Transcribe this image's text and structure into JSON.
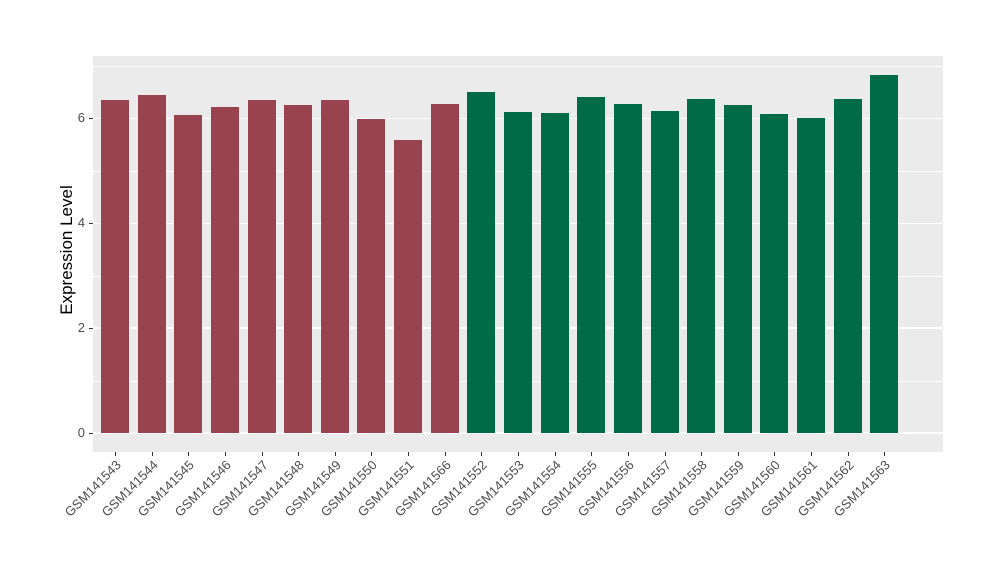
{
  "chart_data": {
    "type": "bar",
    "title": "",
    "xlabel": "",
    "ylabel": "Expression Level",
    "yticks": [
      0,
      2,
      4,
      6
    ],
    "yminor": [
      1,
      3,
      5,
      7
    ],
    "ylim_visible": [
      -0.36,
      7.19
    ],
    "grid": "on",
    "legend": "none",
    "panel_background": "#EBEBEB",
    "gridline_color": "#FFFFFF",
    "tick_color": "#333333",
    "axis_text_color": "#4D4D4D",
    "colors": {
      "red": "#9A4350",
      "green": "#006B47"
    },
    "categories": [
      "GSM141543",
      "GSM141544",
      "GSM141545",
      "GSM141546",
      "GSM141547",
      "GSM141548",
      "GSM141549",
      "GSM141550",
      "GSM141551",
      "GSM141566",
      "GSM141552",
      "GSM141553",
      "GSM141554",
      "GSM141555",
      "GSM141556",
      "GSM141557",
      "GSM141558",
      "GSM141559",
      "GSM141560",
      "GSM141561",
      "GSM141562",
      "GSM141563"
    ],
    "bars": [
      {
        "label": "GSM141543",
        "value": 6.35,
        "color": "red"
      },
      {
        "label": "GSM141544",
        "value": 6.44,
        "color": "red"
      },
      {
        "label": "GSM141545",
        "value": 6.06,
        "color": "red"
      },
      {
        "label": "GSM141546",
        "value": 6.22,
        "color": "red"
      },
      {
        "label": "GSM141547",
        "value": 6.35,
        "color": "red"
      },
      {
        "label": "GSM141548",
        "value": 6.25,
        "color": "red"
      },
      {
        "label": "GSM141549",
        "value": 6.35,
        "color": "red"
      },
      {
        "label": "GSM141550",
        "value": 5.99,
        "color": "red"
      },
      {
        "label": "GSM141551",
        "value": 5.59,
        "color": "red"
      },
      {
        "label": "GSM141566",
        "value": 6.27,
        "color": "red"
      },
      {
        "label": "GSM141552",
        "value": 6.51,
        "color": "green"
      },
      {
        "label": "GSM141553",
        "value": 6.13,
        "color": "green"
      },
      {
        "label": "GSM141554",
        "value": 6.1,
        "color": "green"
      },
      {
        "label": "GSM141555",
        "value": 6.41,
        "color": "green"
      },
      {
        "label": "GSM141556",
        "value": 6.27,
        "color": "green"
      },
      {
        "label": "GSM141557",
        "value": 6.15,
        "color": "green"
      },
      {
        "label": "GSM141558",
        "value": 6.37,
        "color": "green"
      },
      {
        "label": "GSM141559",
        "value": 6.25,
        "color": "green"
      },
      {
        "label": "GSM141560",
        "value": 6.08,
        "color": "green"
      },
      {
        "label": "GSM141561",
        "value": 6.01,
        "color": "green"
      },
      {
        "label": "GSM141562",
        "value": 6.37,
        "color": "green"
      },
      {
        "label": "GSM141563",
        "value": 6.82,
        "color": "green"
      }
    ]
  }
}
